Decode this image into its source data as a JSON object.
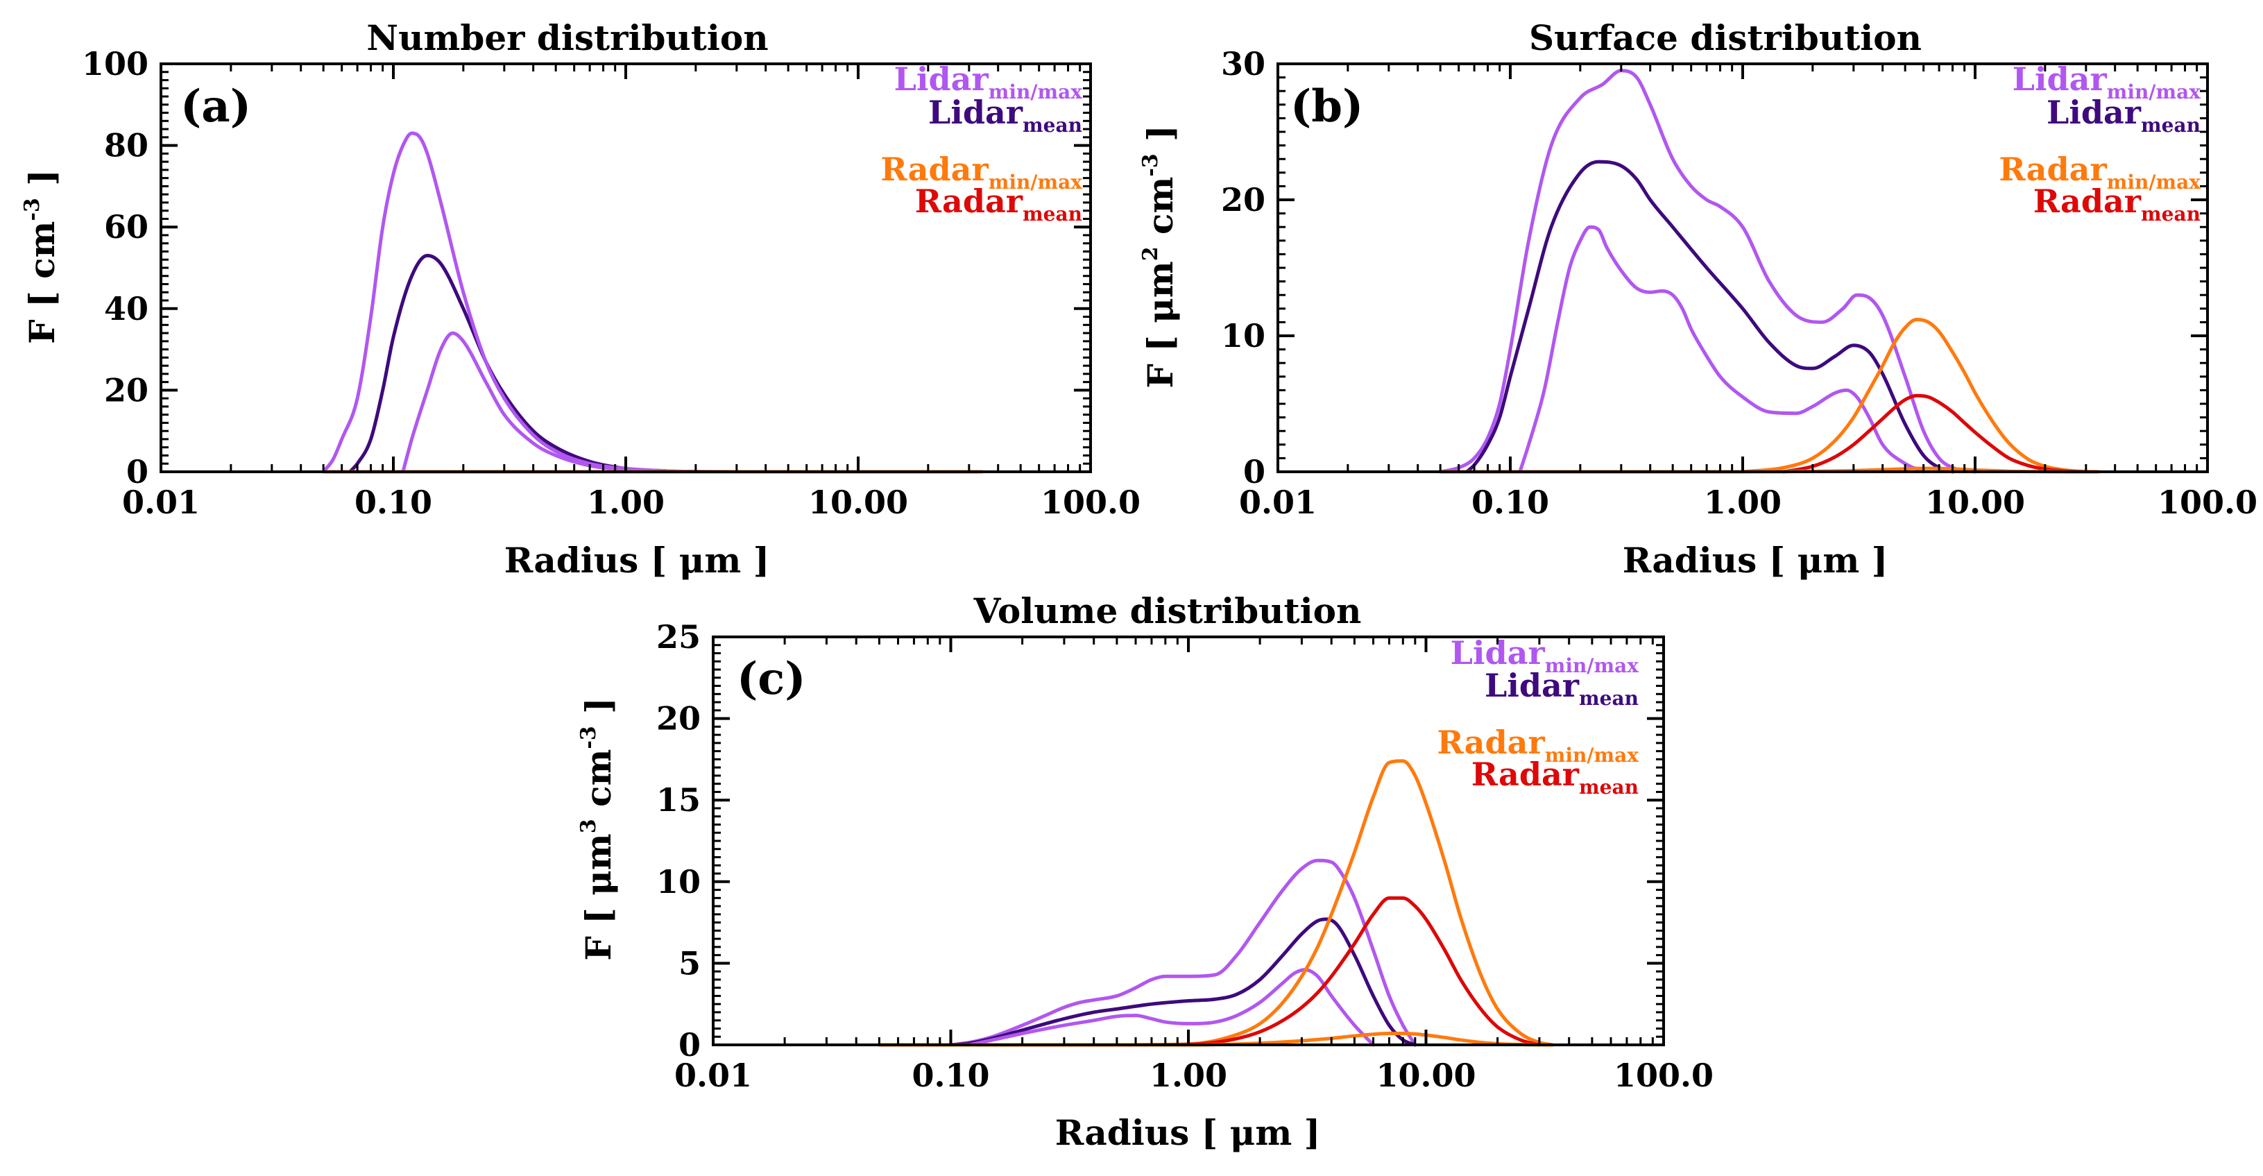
{
  "colors": {
    "lidar_minmax": "#b157f0",
    "lidar_mean": "#3e0a7d",
    "radar_minmax": "#ff7a0d",
    "radar_mean": "#dd0808",
    "axis": "#000000"
  },
  "legend": {
    "lidar_base": "Lidar",
    "lidar_minmax_sub": "min/max",
    "lidar_mean_sub": "mean",
    "radar_base": "Radar",
    "radar_minmax_sub": "min/max",
    "radar_mean_sub": "mean"
  },
  "chart_data": [
    {
      "type": "line",
      "panel_label": "(a)",
      "title": "Number distribution",
      "xlabel": "Radius [ μm ]",
      "ylabel_main": "F [ cm",
      "ylabel_sup": "-3",
      "ylabel_end": " ]",
      "xscale": "log",
      "xlim": [
        0.01,
        100.0
      ],
      "ylim": [
        0,
        100
      ],
      "x_ticks": [
        0.01,
        0.1,
        1.0,
        10.0,
        100.0
      ],
      "x_tick_labels": [
        "0.01",
        "0.10",
        "1.00",
        "10.00",
        "100.0"
      ],
      "y_ticks": [
        0,
        20,
        40,
        60,
        80,
        100
      ],
      "y_tick_labels": [
        "0",
        "20",
        "40",
        "60",
        "80",
        "100"
      ],
      "series": [
        {
          "name": "Lidar min",
          "role": "lidar_minmax",
          "x": [
            0.11,
            0.12,
            0.14,
            0.16,
            0.18,
            0.2,
            0.25,
            0.3,
            0.4,
            0.5,
            0.7,
            1.0,
            1.5,
            2.0,
            3.0
          ],
          "y": [
            0,
            8,
            20,
            30,
            34,
            32,
            22,
            14,
            7,
            4,
            1.5,
            0.5,
            0.1,
            0,
            0
          ]
        },
        {
          "name": "Lidar mean",
          "role": "lidar_mean",
          "x": [
            0.065,
            0.07,
            0.08,
            0.09,
            0.1,
            0.12,
            0.14,
            0.16,
            0.2,
            0.25,
            0.3,
            0.4,
            0.5,
            0.7,
            1.0,
            1.5,
            2.0,
            3.0
          ],
          "y": [
            0,
            2,
            8,
            20,
            33,
            48,
            53,
            51,
            40,
            27,
            19,
            10,
            6,
            2.5,
            0.8,
            0.2,
            0.05,
            0
          ]
        },
        {
          "name": "Lidar max",
          "role": "lidar_minmax",
          "x": [
            0.05,
            0.055,
            0.06,
            0.07,
            0.08,
            0.09,
            0.1,
            0.11,
            0.12,
            0.13,
            0.14,
            0.16,
            0.2,
            0.25,
            0.3,
            0.4,
            0.5,
            0.7,
            1.0,
            1.5,
            2.0,
            3.0
          ],
          "y": [
            0,
            3,
            8,
            18,
            38,
            60,
            73,
            80,
            83,
            82,
            78,
            66,
            44,
            27,
            18,
            9,
            5,
            2,
            0.8,
            0.2,
            0.05,
            0
          ]
        },
        {
          "name": "Radar min",
          "role": "radar_minmax",
          "x": [
            0.05,
            34.0
          ],
          "y": [
            0,
            0
          ]
        },
        {
          "name": "Radar mean",
          "role": "radar_mean",
          "x": [
            0.5,
            34.0
          ],
          "y": [
            0,
            0
          ]
        },
        {
          "name": "Radar max",
          "role": "radar_minmax",
          "x": [
            0.05,
            34.0
          ],
          "y": [
            0,
            0
          ]
        }
      ]
    },
    {
      "type": "line",
      "panel_label": "(b)",
      "title": "Surface distribution",
      "xlabel": "Radius [ μm ]",
      "ylabel_main": "F [ μm",
      "ylabel_sup": "2",
      "ylabel_mid": " cm",
      "ylabel_sup2": "-3",
      "ylabel_end": " ]",
      "xscale": "log",
      "xlim": [
        0.01,
        100.0
      ],
      "ylim": [
        0,
        30
      ],
      "x_ticks": [
        0.01,
        0.1,
        1.0,
        10.0,
        100.0
      ],
      "x_tick_labels": [
        "0.01",
        "0.10",
        "1.00",
        "10.00",
        "100.0"
      ],
      "y_ticks": [
        0,
        10,
        20,
        30
      ],
      "y_tick_labels": [
        "0",
        "10",
        "20",
        "30"
      ],
      "series": [
        {
          "name": "Lidar max",
          "role": "lidar_minmax",
          "x": [
            0.05,
            0.06,
            0.07,
            0.08,
            0.09,
            0.1,
            0.12,
            0.15,
            0.2,
            0.25,
            0.3,
            0.35,
            0.4,
            0.5,
            0.6,
            0.7,
            0.8,
            1.0,
            1.3,
            1.7,
            2.2,
            2.7,
            3.1,
            3.5,
            4.0,
            5.0,
            6.0,
            7.0,
            8.0,
            10.0
          ],
          "y": [
            0,
            0.3,
            1,
            2.5,
            5,
            9,
            17,
            24,
            27.5,
            28.5,
            29.5,
            29,
            27,
            23,
            21,
            20,
            19.5,
            18,
            14,
            11.5,
            11,
            12,
            13,
            12.8,
            11.5,
            7,
            3,
            1,
            0.3,
            0
          ]
        },
        {
          "name": "Lidar mean",
          "role": "lidar_mean",
          "x": [
            0.065,
            0.07,
            0.08,
            0.09,
            0.1,
            0.12,
            0.15,
            0.2,
            0.24,
            0.3,
            0.35,
            0.4,
            0.5,
            0.7,
            1.0,
            1.3,
            1.7,
            2.0,
            2.5,
            3.0,
            3.5,
            4.0,
            5.0,
            6.0,
            7.0,
            8.0
          ],
          "y": [
            0,
            0.5,
            2,
            4,
            7,
            12,
            18,
            22,
            22.8,
            22.5,
            21.5,
            20,
            18,
            15,
            12,
            9.5,
            7.8,
            7.6,
            8.5,
            9.3,
            8.8,
            7.2,
            3.5,
            1.2,
            0.3,
            0
          ]
        },
        {
          "name": "Lidar min",
          "role": "lidar_minmax",
          "x": [
            0.11,
            0.12,
            0.14,
            0.16,
            0.18,
            0.2,
            0.22,
            0.24,
            0.26,
            0.3,
            0.35,
            0.4,
            0.45,
            0.5,
            0.55,
            0.6,
            0.7,
            0.8,
            1.0,
            1.3,
            1.7,
            2.0,
            2.5,
            2.8,
            3.1,
            3.5,
            4.0,
            5.0,
            6.0
          ],
          "y": [
            0,
            2,
            6,
            11,
            15,
            17,
            18,
            17.8,
            16.5,
            14.8,
            13.5,
            13.2,
            13.3,
            13,
            12,
            10.5,
            8.5,
            7,
            5.5,
            4.4,
            4.3,
            4.8,
            5.8,
            6.0,
            5.5,
            4,
            2,
            0.6,
            0
          ]
        },
        {
          "name": "Radar max",
          "role": "radar_minmax",
          "x": [
            1.0,
            1.5,
            2.0,
            2.5,
            3.0,
            3.5,
            4.0,
            4.5,
            5.0,
            5.6,
            6.3,
            7.0,
            8.0,
            9.0,
            10.0,
            12.0,
            14.0,
            17.0,
            20.0,
            25.0,
            30.0,
            34.0
          ],
          "y": [
            0,
            0.3,
            1,
            2.3,
            4,
            6,
            7.8,
            9.5,
            10.6,
            11.2,
            11,
            10.3,
            8.8,
            7.3,
            5.8,
            3.6,
            2.1,
            0.9,
            0.4,
            0.1,
            0.02,
            0
          ]
        },
        {
          "name": "Radar mean",
          "role": "radar_mean",
          "x": [
            1.5,
            2.0,
            2.5,
            3.0,
            3.5,
            4.0,
            4.5,
            5.0,
            5.6,
            6.3,
            7.0,
            8.0,
            9.0,
            10.0,
            12.0,
            14.0,
            17.0,
            20.0,
            25.0,
            30.0
          ],
          "y": [
            0,
            0.4,
            1.1,
            2.0,
            3.0,
            3.9,
            4.7,
            5.3,
            5.6,
            5.5,
            5.1,
            4.4,
            3.6,
            2.9,
            1.8,
            1.0,
            0.45,
            0.2,
            0.05,
            0
          ]
        },
        {
          "name": "Radar min",
          "role": "radar_minmax",
          "x": [
            0.05,
            1.0,
            2.0,
            3.0,
            4.0,
            5.0,
            5.6,
            6.3,
            7.0,
            8.0,
            9.0,
            10.0,
            12.0,
            14.0,
            17.0,
            20.0,
            25.0,
            34.0
          ],
          "y": [
            0,
            0,
            0.03,
            0.08,
            0.15,
            0.22,
            0.25,
            0.25,
            0.24,
            0.21,
            0.17,
            0.13,
            0.08,
            0.04,
            0.02,
            0.01,
            0,
            0
          ]
        }
      ]
    },
    {
      "type": "line",
      "panel_label": "(c)",
      "title": "Volume distribution",
      "xlabel": "Radius [ μm ]",
      "ylabel_main": "F [ μm",
      "ylabel_sup": "3",
      "ylabel_mid": " cm",
      "ylabel_sup2": "-3",
      "ylabel_end": " ]",
      "xscale": "log",
      "xlim": [
        0.01,
        100.0
      ],
      "ylim": [
        0,
        25
      ],
      "x_ticks": [
        0.01,
        0.1,
        1.0,
        10.0,
        100.0
      ],
      "x_tick_labels": [
        "0.01",
        "0.10",
        "1.00",
        "10.00",
        "100.0"
      ],
      "y_ticks": [
        0,
        5,
        10,
        15,
        20,
        25
      ],
      "y_tick_labels": [
        "0",
        "5",
        "10",
        "15",
        "20",
        "25"
      ],
      "series": [
        {
          "name": "Lidar max",
          "role": "lidar_minmax",
          "x": [
            0.1,
            0.12,
            0.15,
            0.2,
            0.25,
            0.3,
            0.35,
            0.4,
            0.5,
            0.6,
            0.7,
            0.8,
            1.0,
            1.3,
            1.6,
            2.0,
            2.5,
            3.0,
            3.5,
            4.0,
            4.5,
            5.0,
            6.0,
            7.0,
            8.0,
            9.0
          ],
          "y": [
            0,
            0.15,
            0.5,
            1.2,
            1.8,
            2.3,
            2.6,
            2.75,
            3.0,
            3.5,
            4.0,
            4.2,
            4.2,
            4.3,
            5.5,
            7.5,
            9.5,
            10.8,
            11.3,
            11.2,
            10.3,
            9.0,
            5.8,
            3.0,
            1.2,
            0
          ]
        },
        {
          "name": "Lidar mean",
          "role": "lidar_mean",
          "x": [
            0.1,
            0.12,
            0.15,
            0.2,
            0.3,
            0.4,
            0.5,
            0.7,
            1.0,
            1.3,
            1.6,
            2.0,
            2.5,
            3.0,
            3.5,
            3.8,
            4.2,
            5.0,
            6.0,
            7.0,
            8.0,
            9.0
          ],
          "y": [
            0,
            0.1,
            0.4,
            0.9,
            1.6,
            2.0,
            2.2,
            2.5,
            2.7,
            2.8,
            3.1,
            4.0,
            5.5,
            6.8,
            7.6,
            7.7,
            7.4,
            5.5,
            3.0,
            1.2,
            0.3,
            0
          ]
        },
        {
          "name": "Lidar min",
          "role": "lidar_minmax",
          "x": [
            0.12,
            0.15,
            0.2,
            0.3,
            0.4,
            0.5,
            0.6,
            0.7,
            0.8,
            1.0,
            1.3,
            1.6,
            2.0,
            2.5,
            2.8,
            3.1,
            3.5,
            4.0,
            5.0,
            6.0
          ],
          "y": [
            0,
            0.3,
            0.7,
            1.2,
            1.5,
            1.75,
            1.8,
            1.6,
            1.4,
            1.3,
            1.4,
            1.8,
            2.6,
            3.8,
            4.4,
            4.6,
            4.2,
            3.0,
            1.2,
            0
          ]
        },
        {
          "name": "Radar max",
          "role": "radar_minmax",
          "x": [
            0.05,
            0.5,
            1.0,
            1.5,
            2.0,
            2.5,
            3.0,
            3.5,
            4.0,
            5.0,
            6.0,
            7.0,
            8.0,
            9.0,
            10.0,
            12.0,
            14.0,
            17.0,
            20.0,
            25.0,
            30.0,
            34.0
          ],
          "y": [
            0,
            0,
            0.05,
            0.5,
            1.3,
            2.6,
            4.2,
            6.0,
            8.0,
            11.8,
            15.2,
            17.3,
            17.4,
            16.5,
            14.8,
            11.2,
            7.8,
            4.3,
            2.2,
            0.7,
            0.15,
            0
          ]
        },
        {
          "name": "Radar mean",
          "role": "radar_mean",
          "x": [
            0.5,
            1.0,
            1.5,
            2.0,
            2.5,
            3.0,
            3.5,
            4.0,
            5.0,
            6.0,
            7.0,
            8.0,
            9.0,
            10.0,
            12.0,
            14.0,
            17.0,
            20.0,
            25.0,
            30.0
          ],
          "y": [
            0,
            0.03,
            0.3,
            0.8,
            1.5,
            2.3,
            3.2,
            4.2,
            6.2,
            8.0,
            9.0,
            9.0,
            8.5,
            7.7,
            5.8,
            4.0,
            2.2,
            1.1,
            0.3,
            0
          ]
        },
        {
          "name": "Radar min",
          "role": "radar_minmax",
          "x": [
            0.05,
            1.0,
            2.0,
            3.0,
            4.0,
            5.0,
            6.0,
            7.0,
            8.0,
            9.0,
            10.0,
            12.0,
            14.0,
            17.0,
            20.0,
            25.0,
            34.0
          ],
          "y": [
            0,
            0,
            0.1,
            0.25,
            0.4,
            0.55,
            0.65,
            0.7,
            0.7,
            0.67,
            0.6,
            0.45,
            0.3,
            0.15,
            0.07,
            0.02,
            0
          ]
        }
      ]
    }
  ]
}
